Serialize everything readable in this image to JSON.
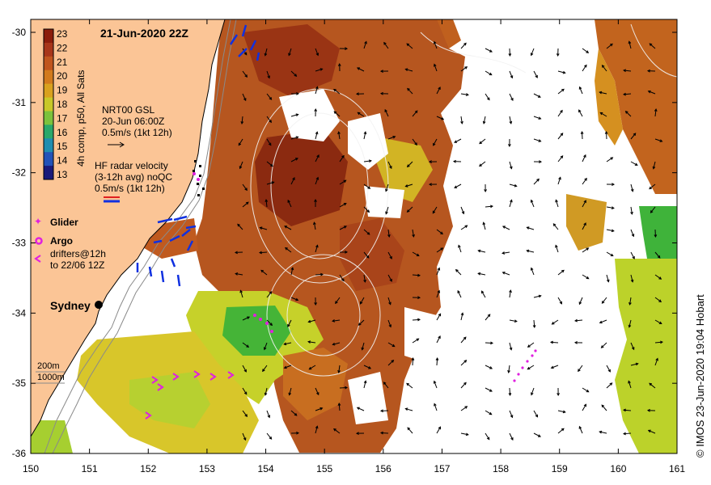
{
  "title": "21-Jun-2020 22Z",
  "credit": "© IMOS 23-Jun-2020 19:04 Hobart",
  "colorbar": {
    "label": "4h comp, p50, All Sats",
    "ticks": [
      "23",
      "22",
      "21",
      "20",
      "19",
      "18",
      "17",
      "16",
      "15",
      "14",
      "13"
    ],
    "colors": [
      "#8b1d0c",
      "#a8361a",
      "#c0551e",
      "#d27a1c",
      "#d9a11e",
      "#c8c828",
      "#7cc23c",
      "#2aa86a",
      "#1f8db0",
      "#2252b8",
      "#1a1a7a"
    ]
  },
  "axes": {
    "x_ticks": [
      "150",
      "151",
      "152",
      "153",
      "154",
      "155",
      "156",
      "157",
      "158",
      "159",
      "160",
      "161"
    ],
    "y_ticks": [
      "-30",
      "-31",
      "-32",
      "-33",
      "-34",
      "-35",
      "-36"
    ]
  },
  "legend": {
    "gsl_line1": "NRT00 GSL",
    "gsl_line2": "20-Jun 06:00Z",
    "gsl_line3": "0.5m/s (1kt 12h)",
    "hf_line1": "HF radar velocity",
    "hf_line2": "(3-12h avg) noQC",
    "hf_line3": "0.5m/s (1kt 12h)",
    "glider": "Glider",
    "argo": "Argo",
    "drifters_line1": "drifters@12h",
    "drifters_line2": "to 22/06 12Z"
  },
  "place": {
    "sydney": "Sydney"
  },
  "bathy": {
    "line1": "200m",
    "line2": "1000m"
  },
  "colors": {
    "land": "#fbc596",
    "warm": "#b4531e",
    "hot": "#8d2a10",
    "warm2": "#cf7e2a",
    "yellow": "#d8c22a",
    "green": "#6fc12f",
    "drifter": "#e020e0",
    "hf": "#1030e0"
  }
}
